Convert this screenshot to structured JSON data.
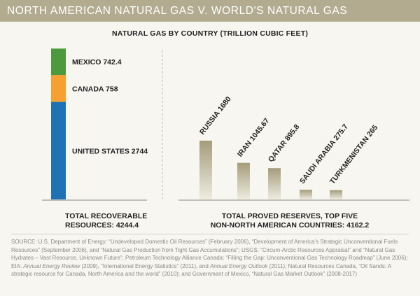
{
  "banner": {
    "title": "NORTH AMERICAN NATURAL GAS V. WORLD'S NATURAL GAS"
  },
  "chart_data": {
    "title": "NATURAL GAS BY COUNTRY (TRILLION CUBIC FEET)",
    "north_america": {
      "type": "stacked-bar",
      "segments": [
        {
          "label": "UNITED STATES 2744",
          "value": 2744,
          "color": "#1f73b4"
        },
        {
          "label": "CANADA 758",
          "value": 758,
          "color": "#f6a031"
        },
        {
          "label": "MEXICO 742.4",
          "value": 742.4,
          "color": "#4c9a3d"
        }
      ],
      "total_label_lines": [
        "TOTAL RECOVERABLE",
        "RESOURCES: 4244.4"
      ]
    },
    "world": {
      "type": "bar",
      "categories": [
        "RUSSIA",
        "IRAN",
        "QATAR",
        "SAUDI ARABIA",
        "TURKMENISTAN"
      ],
      "value_labels": [
        "RUSSIA 1680",
        "IRAN 1045.67",
        "QATAR 895.8",
        "SAUDI ARABIA 275.7",
        "TURKMENISTAN 265"
      ],
      "values": [
        1680,
        1045.67,
        895.8,
        275.7,
        265
      ],
      "total_label_lines": [
        "TOTAL PROVED RESERVES, TOP FIVE",
        "NON-NORTH AMERICAN COUNTRIES: 4162.2"
      ]
    }
  },
  "source": {
    "p1": "SOURCE: U.S. Department of Energy: “Undeveloped Domestic Oil Resources” (February 2006), “Development of America’s Strategic Unconventional Fuels Resources” (September 2006), and “Natural Gas Production from Tight Gas Accumulations”; USGS: “Circum-Arctic Resources Appraisal” and “Natural Gas Hydrates – Vast Resource, Unknown Future”; Petroleum Technology Alliance Canada: “Filling the Gap: Unconventional Gas Technology Roadmap” (June 2006); EIA: ",
    "i1": "Annual Energy Review",
    "p2": " (2009), “International Energy Statistics” (2011), and ",
    "i2": "Annual Energy Outlook",
    "p3": " (2011); Natural Resources Canada, “Oil Sands: A strategic resource for Canada, North America and the world” (2010); and Government of Mexico, “Natural Gas Market Outlook” (2008-2017)"
  }
}
